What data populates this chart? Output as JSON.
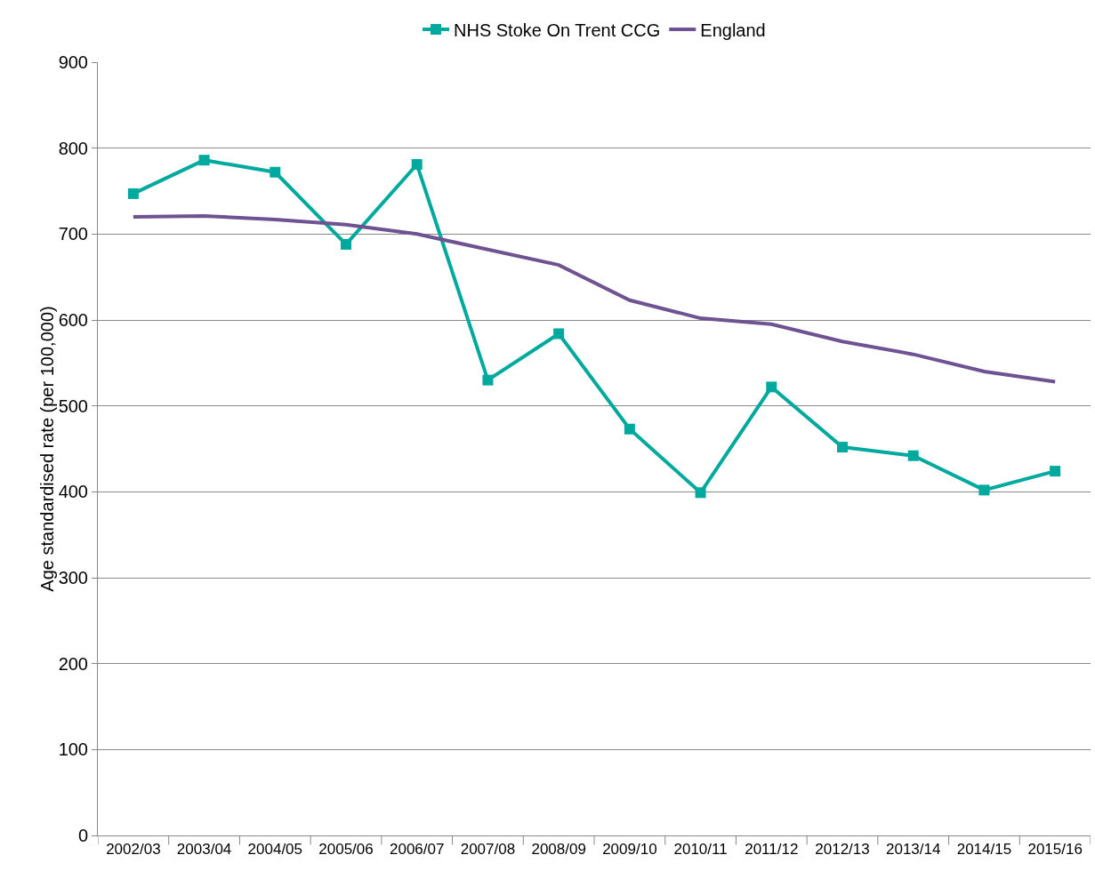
{
  "chart_data": {
    "type": "line",
    "ylabel": "Age standardised rate (per 100,000)",
    "categories": [
      "2002/03",
      "2003/04",
      "2004/05",
      "2005/06",
      "2006/07",
      "2007/08",
      "2008/09",
      "2009/10",
      "2010/11",
      "2011/12",
      "2012/13",
      "2013/14",
      "2014/15",
      "2015/16"
    ],
    "series": [
      {
        "name": "NHS Stoke On Trent CCG",
        "color": "#00a99d",
        "marker": "square",
        "values": [
          747,
          786,
          772,
          688,
          781,
          530,
          584,
          473,
          399,
          522,
          452,
          442,
          402,
          424
        ]
      },
      {
        "name": "England",
        "color": "#6f5291",
        "marker": "none",
        "values": [
          720,
          721,
          717,
          711,
          700,
          682,
          664,
          623,
          602,
          595,
          575,
          560,
          540,
          528
        ]
      }
    ],
    "ylim": [
      0,
      900
    ],
    "yticks": [
      0,
      100,
      200,
      300,
      400,
      500,
      600,
      700,
      800,
      900
    ],
    "grid": "y",
    "legend": "top",
    "line_style": "solid"
  }
}
